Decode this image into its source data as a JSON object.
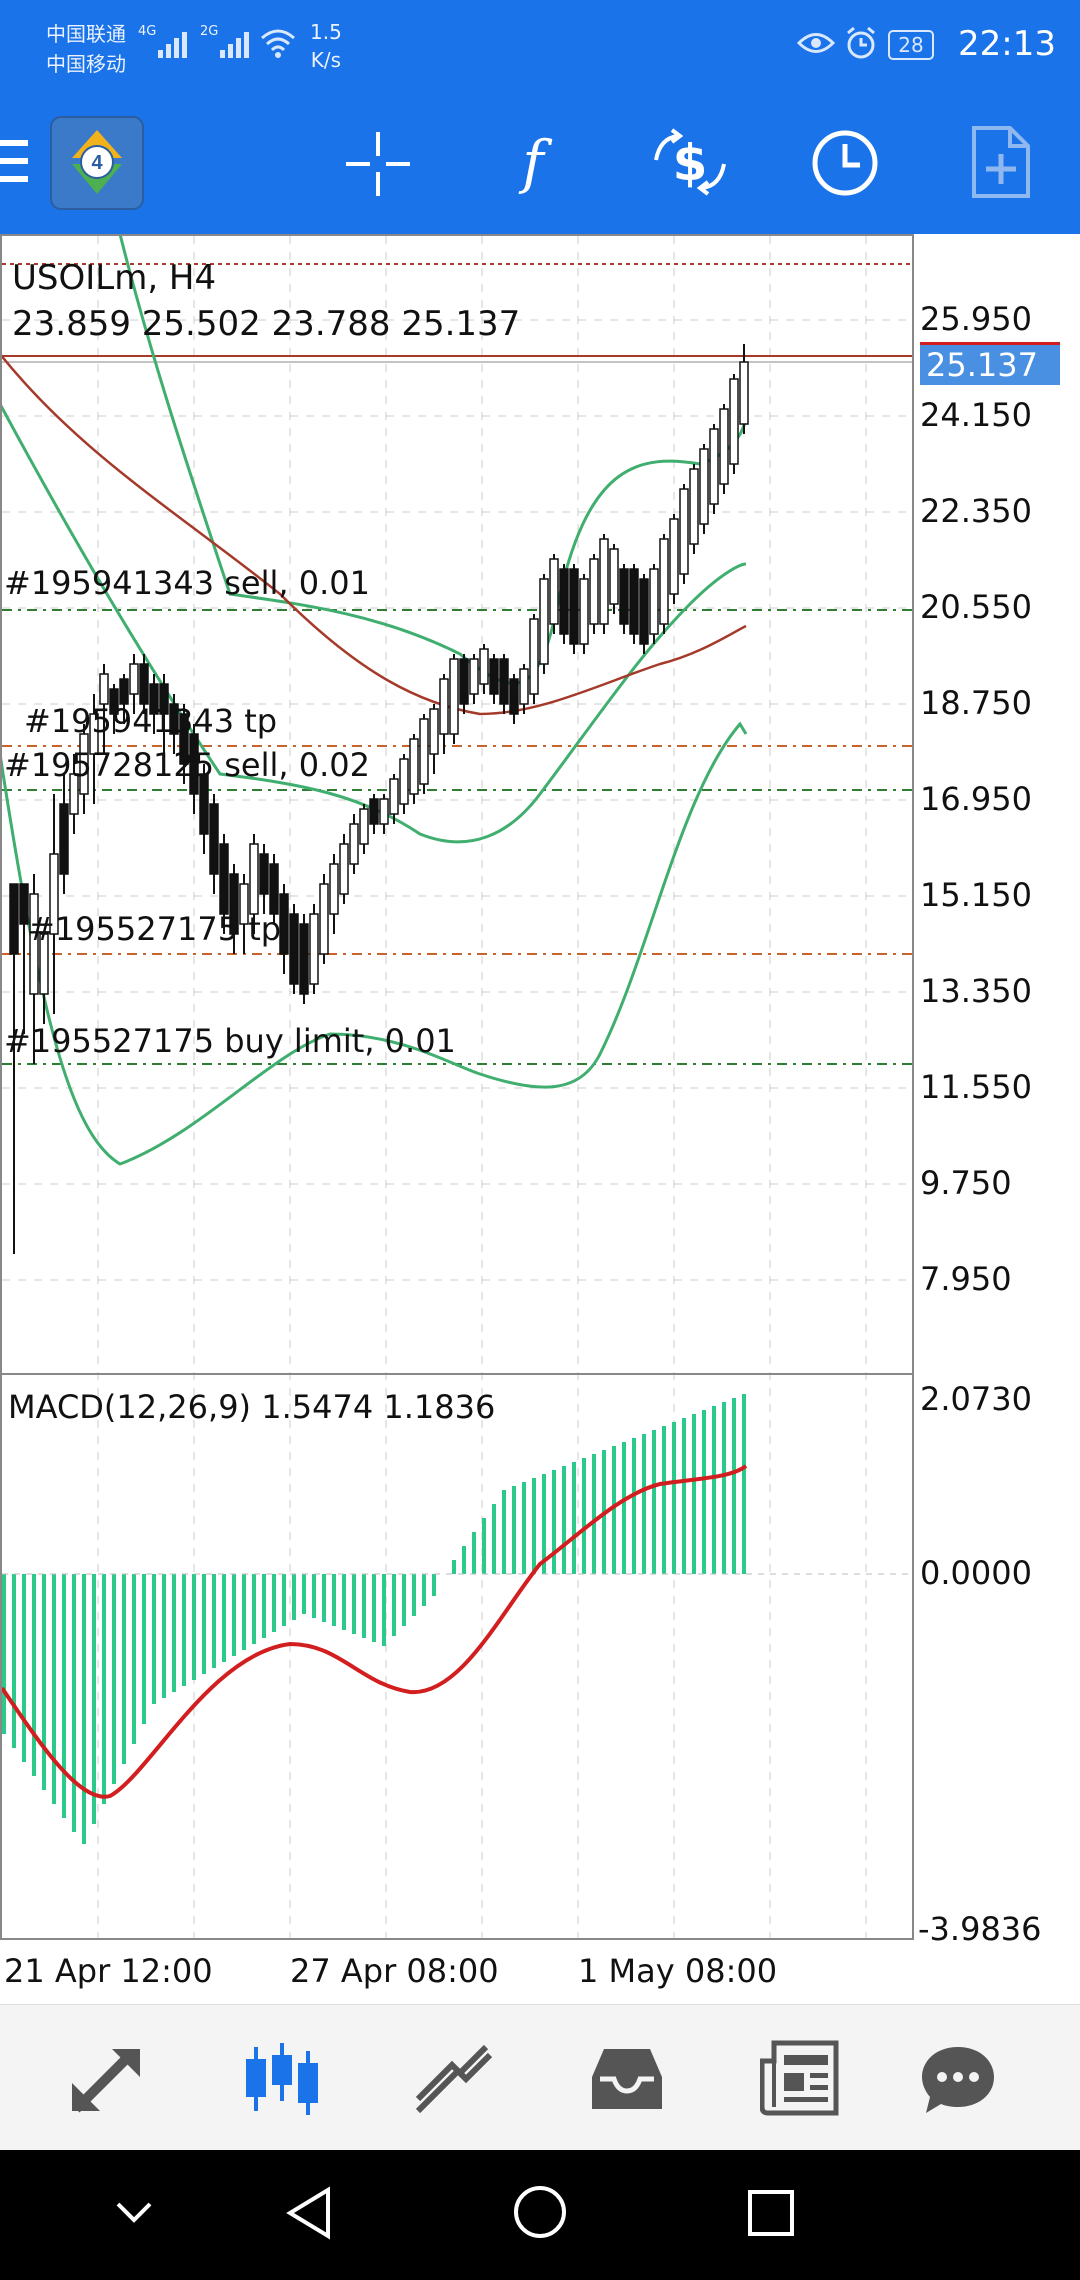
{
  "status_bar": {
    "carrier_1": "中国联通",
    "carrier_2": "中国移动",
    "net_1": "4G",
    "net_2": "2G",
    "speed_value": "1.5",
    "speed_unit": "K/s",
    "battery": "28",
    "time": "22:13"
  },
  "toolbar": {
    "icons": [
      "menu-icon",
      "metatrader-logo",
      "crosshair-icon",
      "indicators-icon",
      "trade-icon",
      "timeframe-icon",
      "add-object-icon"
    ]
  },
  "chart": {
    "symbol_timeframe": "USOILm, H4",
    "ohlc": "23.859 25.502 23.788 25.137",
    "current_price": "25.137",
    "price_labels": [
      "25.950",
      "24.150",
      "22.350",
      "20.550",
      "18.750",
      "16.950",
      "15.150",
      "13.350",
      "11.550",
      "9.750",
      "7.950"
    ],
    "order_lines": [
      {
        "label": "#195941343 sell, 0.01",
        "color": "#2e7d32"
      },
      {
        "label": "#195941343 tp",
        "color": "#c8642a"
      },
      {
        "label": "#195728125 sell, 0.02",
        "color": "#2e7d32"
      },
      {
        "label": "#195527175 tp",
        "color": "#c8642a"
      },
      {
        "label": "#195527175 buy limit, 0.01",
        "color": "#2e7d32"
      }
    ],
    "macd": {
      "label": "MACD(12,26,9) 1.5474 1.1836",
      "scale_labels": [
        "2.0730",
        "0.0000",
        "-3.9836"
      ]
    },
    "time_labels": [
      "21 Apr 12:00",
      "27 Apr 08:00",
      "1 May 08:00"
    ],
    "colors": {
      "band": "#3fae6e",
      "ma": "#a63a2a",
      "signal": "#d21e1e",
      "histogram": "#2bc98a",
      "price_tag": "#4a90e2"
    }
  },
  "bottom_nav": {
    "items": [
      "quotes-icon",
      "chart-icon",
      "trade-icon",
      "history-icon",
      "news-icon",
      "messages-icon"
    ],
    "active": "chart-icon"
  },
  "system_nav": [
    "collapse-icon",
    "back-icon",
    "home-icon",
    "recents-icon"
  ]
}
